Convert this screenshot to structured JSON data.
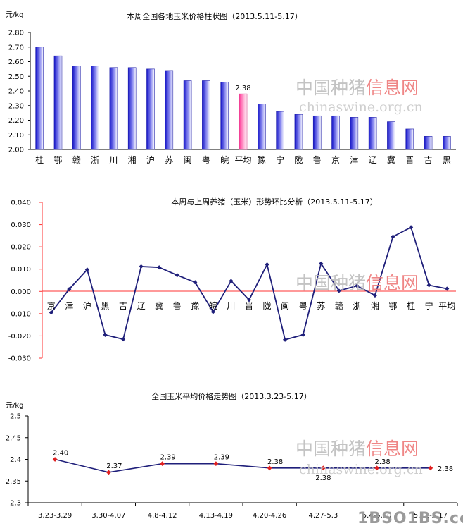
{
  "watermark": {
    "cn_main": "中国种猪",
    "cn_accent": "信息网",
    "url": "chinaswine.org.cn",
    "accent_color": "#e85a5a",
    "main_color": "#b8b8b8"
  },
  "brand": {
    "text": "1BSO1BS.com"
  },
  "chart_data": [
    {
      "type": "bar",
      "title": "本周全国各地玉米价格柱状图（2013.5.11-5.17）",
      "unit": "元/kg",
      "ylim": [
        2.0,
        2.8
      ],
      "yticks": [
        "2.00",
        "2.10",
        "2.20",
        "2.30",
        "2.40",
        "2.50",
        "2.60",
        "2.70",
        "2.80"
      ],
      "categories": [
        "桂",
        "鄂",
        "赣",
        "浙",
        "川",
        "湘",
        "沪",
        "苏",
        "闽",
        "粤",
        "皖",
        "平均",
        "豫",
        "宁",
        "陇",
        "鲁",
        "京",
        "津",
        "辽",
        "冀",
        "晋",
        "吉",
        "黑"
      ],
      "values": [
        2.7,
        2.64,
        2.57,
        2.57,
        2.56,
        2.56,
        2.55,
        2.54,
        2.47,
        2.47,
        2.46,
        2.38,
        2.31,
        2.26,
        2.24,
        2.23,
        2.23,
        2.22,
        2.22,
        2.19,
        2.14,
        2.09,
        2.09
      ],
      "highlight_index": 11,
      "highlight_label": "2.38",
      "bar_color": "#2a2ae0",
      "highlight_color": "#ff4fa0",
      "grid": false
    },
    {
      "type": "line",
      "title": "本周与上周养猪（玉米）形势环比分析（2013.5.11-5.17）",
      "ylim": [
        -0.03,
        0.04
      ],
      "yticks": [
        "-0.030",
        "-0.020",
        "-0.010",
        "0.000",
        "0.010",
        "0.020",
        "0.030",
        "0.040"
      ],
      "categories": [
        "京",
        "津",
        "沪",
        "黑",
        "吉",
        "辽",
        "冀",
        "鲁",
        "豫",
        "皖",
        "川",
        "晋",
        "陇",
        "闽",
        "粤",
        "苏",
        "赣",
        "浙",
        "湘",
        "鄂",
        "桂",
        "宁",
        "平均"
      ],
      "values": [
        -0.0095,
        0.001,
        0.0098,
        -0.0195,
        -0.0215,
        0.0112,
        0.0108,
        0.0073,
        0.0041,
        -0.0092,
        0.0047,
        -0.0038,
        0.0121,
        -0.0217,
        -0.0195,
        0.0125,
        0.0003,
        0.0025,
        -0.0018,
        0.0246,
        0.0288,
        0.0028,
        0.0012
      ],
      "line_color": "#1f1f7a",
      "axis_color": "#ff3333",
      "grid": false
    },
    {
      "type": "line",
      "title": "全国玉米平均价格走势图（2013.3.23-5.17）",
      "unit": "元/kg",
      "ylim": [
        2.3,
        2.5
      ],
      "yticks": [
        "2.3",
        "2.35",
        "2.4",
        "2.45",
        "2.5"
      ],
      "categories": [
        "3.23-3.29",
        "3.30-4.07",
        "4.8-4.12",
        "4.13-4.19",
        "4.20-4.26",
        "4.27-5.3",
        "5.4-5.10",
        "5.11-5.17"
      ],
      "values": [
        2.4,
        2.37,
        2.39,
        2.39,
        2.38,
        2.38,
        2.38,
        2.38
      ],
      "point_labels": [
        "2.40",
        "2.37",
        "2.39",
        "2.39",
        "2.38",
        "2.38",
        "2.38",
        "2.38"
      ],
      "line_color": "#1f1f7a",
      "marker_color": "#e02020",
      "grid": false
    }
  ]
}
